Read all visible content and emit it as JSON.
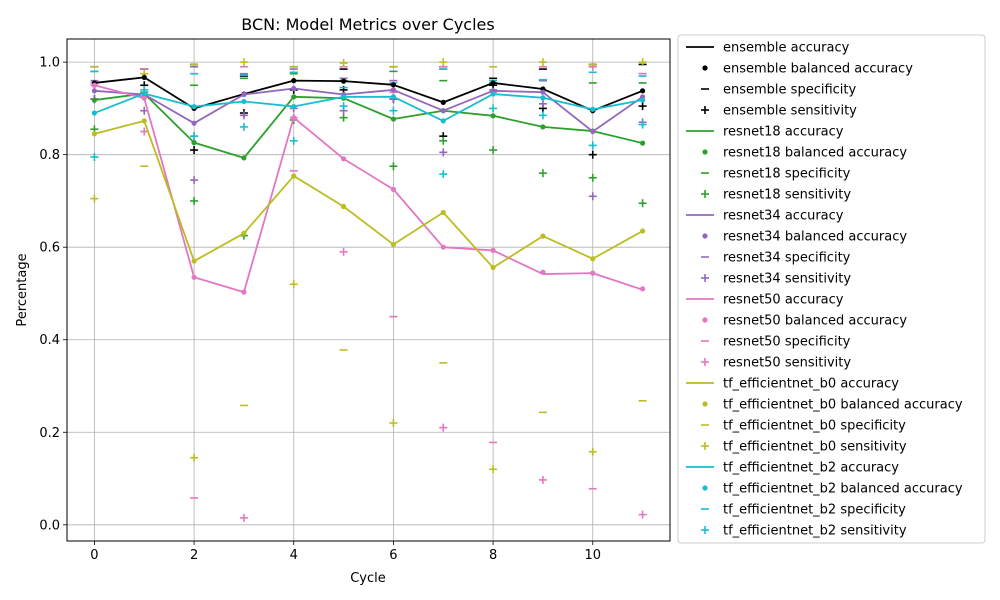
{
  "chart_data": {
    "type": "line",
    "title": "BCN: Model Metrics over Cycles",
    "xlabel": "Cycle",
    "ylabel": "Percentage",
    "xlim": [
      -0.55,
      11.55
    ],
    "ylim": [
      -0.035,
      1.05
    ],
    "x": [
      0,
      1,
      2,
      3,
      4,
      5,
      6,
      7,
      8,
      9,
      10,
      11
    ],
    "xticks": [
      "0",
      "2",
      "4",
      "6",
      "8",
      "10"
    ],
    "yticks": [
      "0.0",
      "0.2",
      "0.4",
      "0.6",
      "0.8",
      "1.0"
    ],
    "grid": true,
    "legend_position": "outside-right",
    "metrics": [
      "accuracy",
      "balanced accuracy",
      "specificity",
      "sensitivity"
    ],
    "series": [
      {
        "name": "ensemble",
        "color": "#000000",
        "accuracy": [
          0.955,
          0.967,
          0.9,
          0.931,
          0.96,
          0.959,
          0.951,
          0.913,
          0.955,
          0.942,
          0.895,
          0.938
        ],
        "balanced_accuracy": [
          0.955,
          0.967,
          0.9,
          0.931,
          0.96,
          0.959,
          0.951,
          0.913,
          0.955,
          0.942,
          0.895,
          0.938
        ],
        "specificity": [
          0.99,
          0.985,
          0.995,
          0.97,
          0.99,
          0.985,
          0.99,
          0.99,
          0.965,
          0.985,
          0.995,
          0.995
        ],
        "sensitivity": [
          0.92,
          0.95,
          0.81,
          0.89,
          0.94,
          0.94,
          0.92,
          0.84,
          0.95,
          0.9,
          0.8,
          0.905
        ]
      },
      {
        "name": "resnet18",
        "color": "#2ca02c",
        "accuracy": [
          0.918,
          0.932,
          0.826,
          0.793,
          0.925,
          0.922,
          0.877,
          0.895,
          0.884,
          0.86,
          0.851,
          0.825
        ],
        "balanced_accuracy": [
          0.918,
          0.932,
          0.826,
          0.793,
          0.925,
          0.922,
          0.877,
          0.895,
          0.884,
          0.86,
          0.851,
          0.825
        ],
        "specificity": [
          0.98,
          0.93,
          0.95,
          0.965,
          0.975,
          0.96,
          0.98,
          0.96,
          0.955,
          0.96,
          0.955,
          0.955
        ],
        "sensitivity": [
          0.855,
          0.935,
          0.7,
          0.625,
          0.875,
          0.88,
          0.775,
          0.83,
          0.81,
          0.76,
          0.75,
          0.695
        ]
      },
      {
        "name": "resnet34",
        "color": "#9467bd",
        "accuracy": [
          0.938,
          0.93,
          0.868,
          0.93,
          0.943,
          0.93,
          0.94,
          0.895,
          0.938,
          0.935,
          0.85,
          0.925
        ],
        "balanced_accuracy": [
          0.938,
          0.93,
          0.868,
          0.93,
          0.943,
          0.93,
          0.94,
          0.895,
          0.938,
          0.935,
          0.85,
          0.925
        ],
        "specificity": [
          0.96,
          0.985,
          0.99,
          0.975,
          0.985,
          0.965,
          0.96,
          0.985,
          0.94,
          0.96,
          0.99,
          0.975
        ],
        "sensitivity": [
          0.92,
          0.895,
          0.745,
          0.885,
          0.9,
          0.895,
          0.92,
          0.805,
          0.935,
          0.91,
          0.71,
          0.87
        ]
      },
      {
        "name": "resnet50",
        "color": "#e377c2",
        "accuracy": [
          0.95,
          0.922,
          0.535,
          0.503,
          0.88,
          0.791,
          0.725,
          0.6,
          0.593,
          0.542,
          0.544,
          0.508
        ],
        "balanced_accuracy": [
          0.95,
          0.922,
          0.535,
          0.503,
          0.88,
          0.791,
          0.725,
          0.6,
          0.593,
          0.546,
          0.544,
          0.51
        ],
        "specificity": [
          0.955,
          0.985,
          0.058,
          0.99,
          0.765,
          0.99,
          0.45,
          0.99,
          0.178,
          0.99,
          0.078,
          0.975
        ],
        "sensitivity": [
          0.95,
          0.85,
          0.84,
          0.015,
          0.88,
          0.59,
          0.935,
          0.21,
          0.935,
          0.097,
          0.99,
          0.022
        ]
      },
      {
        "name": "tf_efficientnet_b0",
        "color": "#bcbd22",
        "accuracy": [
          0.845,
          0.873,
          0.57,
          0.63,
          0.754,
          0.688,
          0.606,
          0.675,
          0.556,
          0.624,
          0.575,
          0.635
        ],
        "balanced_accuracy": [
          0.845,
          0.873,
          0.57,
          0.63,
          0.754,
          0.688,
          0.606,
          0.675,
          0.556,
          0.624,
          0.575,
          0.635
        ],
        "specificity": [
          0.99,
          0.775,
          0.995,
          0.258,
          0.99,
          0.378,
          0.99,
          0.35,
          0.99,
          0.243,
          0.995,
          0.268
        ],
        "sensitivity": [
          0.705,
          0.975,
          0.145,
          1.0,
          0.52,
          0.998,
          0.22,
          1.0,
          0.12,
          1.0,
          0.158,
          1.0
        ]
      },
      {
        "name": "tf_efficientnet_b2",
        "color": "#17becf",
        "accuracy": [
          0.89,
          0.932,
          0.904,
          0.915,
          0.904,
          0.925,
          0.925,
          0.873,
          0.931,
          0.923,
          0.898,
          0.918
        ],
        "balanced_accuracy": [
          0.89,
          0.932,
          0.904,
          0.915,
          0.904,
          0.925,
          0.925,
          0.873,
          0.931,
          0.923,
          0.898,
          0.918
        ],
        "specificity": [
          0.98,
          0.925,
          0.975,
          0.972,
          0.978,
          0.945,
          0.955,
          0.985,
          0.96,
          0.962,
          0.978,
          0.97
        ],
        "sensitivity": [
          0.795,
          0.94,
          0.84,
          0.86,
          0.83,
          0.905,
          0.895,
          0.758,
          0.9,
          0.885,
          0.82,
          0.865
        ]
      }
    ],
    "legend_entries": [
      "ensemble accuracy",
      "ensemble balanced accuracy",
      "ensemble specificity",
      "ensemble sensitivity",
      "resnet18 accuracy",
      "resnet18 balanced accuracy",
      "resnet18 specificity",
      "resnet18 sensitivity",
      "resnet34 accuracy",
      "resnet34 balanced accuracy",
      "resnet34 specificity",
      "resnet34 sensitivity",
      "resnet50 accuracy",
      "resnet50 balanced accuracy",
      "resnet50 specificity",
      "resnet50 sensitivity",
      "tf_efficientnet_b0 accuracy",
      "tf_efficientnet_b0 balanced accuracy",
      "tf_efficientnet_b0 specificity",
      "tf_efficientnet_b0 sensitivity",
      "tf_efficientnet_b2 accuracy",
      "tf_efficientnet_b2 balanced accuracy",
      "tf_efficientnet_b2 specificity",
      "tf_efficientnet_b2 sensitivity"
    ]
  }
}
